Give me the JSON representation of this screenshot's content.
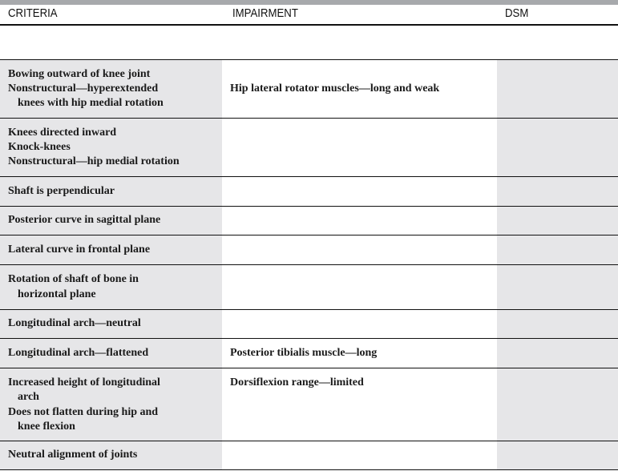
{
  "header": {
    "criteria": "CRITERIA",
    "impairment": "IMPAIRMENT",
    "dsm": "DSM"
  },
  "rows": [
    {
      "criteria": [
        "Bowing outward of knee joint",
        "Nonstructural—hyperextended",
        "knees with hip medial rotation"
      ],
      "impairment": "Hip lateral rotator muscles—long and weak",
      "dsm": ""
    },
    {
      "criteria": [
        "Knees directed inward",
        "Knock-knees",
        "Nonstructural—hip medial rotation"
      ],
      "impairment": "",
      "dsm": ""
    },
    {
      "criteria": [
        "Shaft is perpendicular"
      ],
      "impairment": "",
      "dsm": ""
    },
    {
      "criteria": [
        "Posterior curve in sagittal plane"
      ],
      "impairment": "",
      "dsm": ""
    },
    {
      "criteria": [
        "Lateral curve in frontal plane"
      ],
      "impairment": "",
      "dsm": ""
    },
    {
      "criteria": [
        "Rotation of shaft of bone in",
        "horizontal plane"
      ],
      "impairment": "",
      "dsm": ""
    },
    {
      "criteria": [
        "Longitudinal arch—neutral"
      ],
      "impairment": "",
      "dsm": ""
    },
    {
      "criteria": [
        "Longitudinal arch—flattened"
      ],
      "impairment": "Posterior tibialis muscle—long",
      "dsm": ""
    },
    {
      "criteria": [
        "Increased height of longitudinal",
        "arch",
        "Does not flatten during hip and",
        "knee flexion"
      ],
      "impairment": "Dorsiflexion range—limited",
      "dsm": ""
    },
    {
      "criteria": [
        "Neutral alignment of joints"
      ],
      "impairment": "",
      "dsm": ""
    }
  ]
}
